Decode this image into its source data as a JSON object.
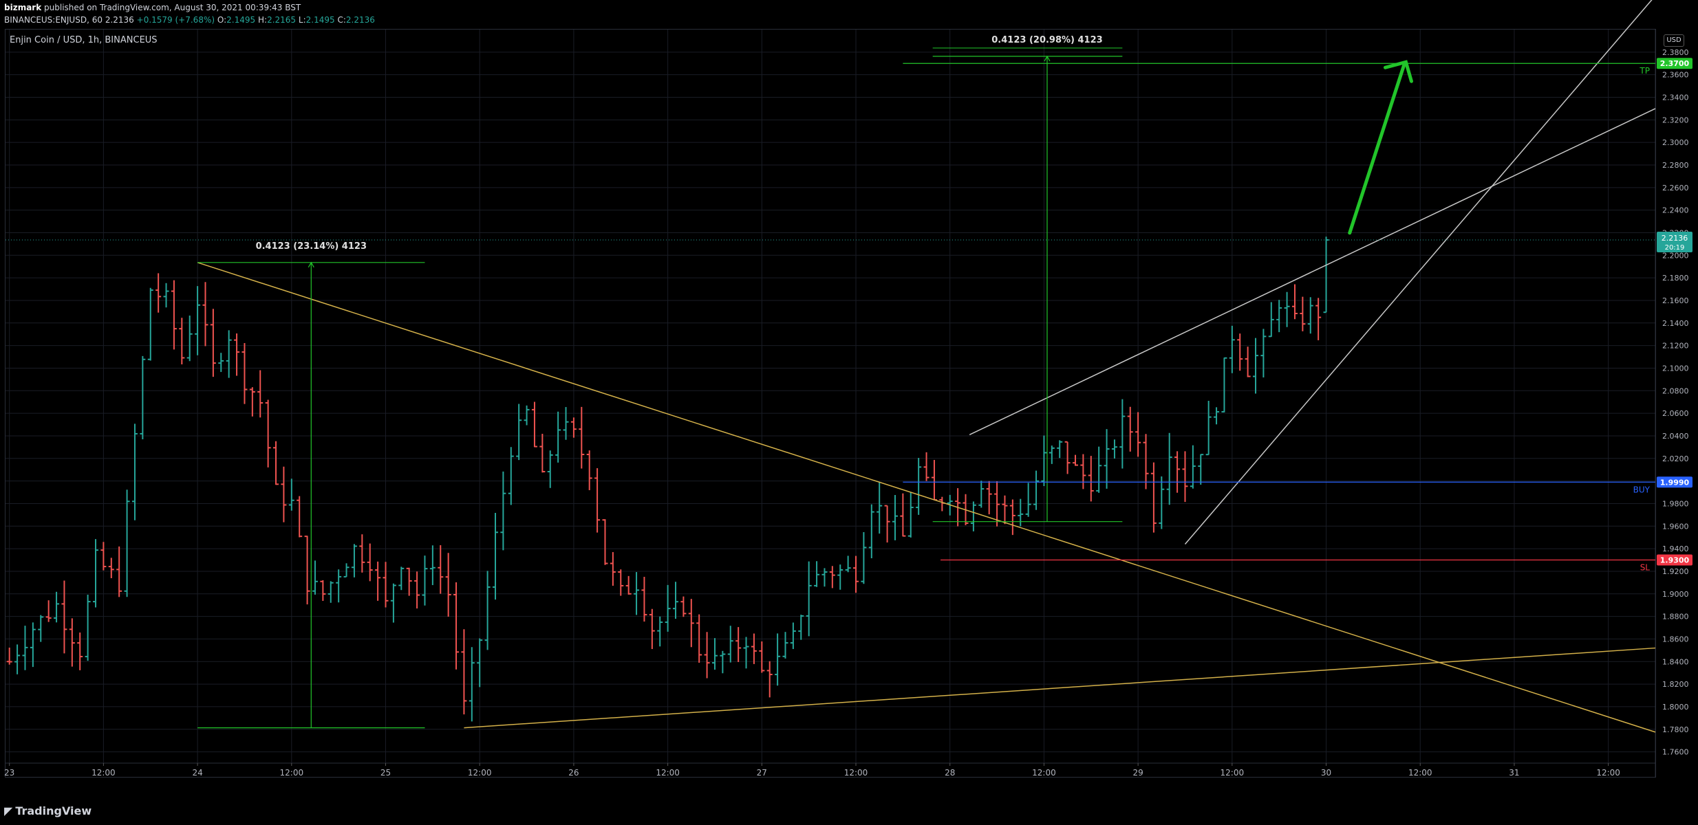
{
  "header": {
    "publisher": "bizmark",
    "published_text": "published on TradingView.com, August 30, 2021 00:39:43 BST",
    "symbol_line": "BINANCEUS:ENJUSD, 60",
    "last": "2.2136",
    "change": "+0.1579 (+7.68%)",
    "o_label": "O:",
    "o_val": "2.1495",
    "h_label": "H:",
    "h_val": "2.2165",
    "l_label": "L:",
    "l_val": "2.1495",
    "c_label": "C:",
    "c_val": "2.2136"
  },
  "chart_title": "Enjin Coin / USD, 1h, BINANCEUS",
  "currency": "USD",
  "footer_brand": "TradingView",
  "colors": {
    "up": "#26a69a",
    "down": "#ef5350",
    "grid": "#1a1d26",
    "trendline": "#d4b14a",
    "channel": "#c8c8c8",
    "green": "#22c52a",
    "buy": "#2962ff",
    "sl": "#f23645"
  },
  "chart_data": {
    "type": "ohlc",
    "ylim": [
      1.75,
      2.4
    ],
    "y_ticks": [
      "1.7600",
      "1.7800",
      "1.8000",
      "1.8200",
      "1.8400",
      "1.8600",
      "1.8800",
      "1.9000",
      "1.9200",
      "1.9400",
      "1.9600",
      "1.9800",
      "2.0000",
      "2.0200",
      "2.0400",
      "2.0600",
      "2.0800",
      "2.1000",
      "2.1200",
      "2.1400",
      "2.1600",
      "2.1800",
      "2.2000",
      "2.2200",
      "2.2400",
      "2.2600",
      "2.2800",
      "2.3000",
      "2.3200",
      "2.3400",
      "2.3600",
      "2.3800"
    ],
    "x_ticks": [
      {
        "h": 0,
        "label": "23"
      },
      {
        "h": 12,
        "label": "12:00"
      },
      {
        "h": 24,
        "label": "24"
      },
      {
        "h": 36,
        "label": "12:00"
      },
      {
        "h": 48,
        "label": "25"
      },
      {
        "h": 60,
        "label": "12:00"
      },
      {
        "h": 72,
        "label": "26"
      },
      {
        "h": 84,
        "label": "12:00"
      },
      {
        "h": 96,
        "label": "27"
      },
      {
        "h": 108,
        "label": "12:00"
      },
      {
        "h": 120,
        "label": "28"
      },
      {
        "h": 132,
        "label": "12:00"
      },
      {
        "h": 144,
        "label": "29"
      },
      {
        "h": 156,
        "label": "12:00"
      },
      {
        "h": 168,
        "label": "30"
      },
      {
        "h": 180,
        "label": "12:00"
      },
      {
        "h": 192,
        "label": "31"
      },
      {
        "h": 204,
        "label": "12:00"
      }
    ],
    "x_range_hours": [
      -0.5,
      210
    ],
    "anchors": [
      [
        0,
        1.84
      ],
      [
        3,
        1.87
      ],
      [
        6,
        1.89
      ],
      [
        9,
        1.85
      ],
      [
        11,
        1.93
      ],
      [
        14,
        1.91
      ],
      [
        16,
        2.04
      ],
      [
        18,
        2.17
      ],
      [
        20,
        2.16
      ],
      [
        22,
        2.11
      ],
      [
        24,
        2.16
      ],
      [
        26,
        2.1
      ],
      [
        28,
        2.13
      ],
      [
        30,
        2.09
      ],
      [
        32,
        2.07
      ],
      [
        34,
        1.99
      ],
      [
        36,
        1.98
      ],
      [
        38,
        1.91
      ],
      [
        40,
        1.9
      ],
      [
        42,
        1.92
      ],
      [
        44,
        1.94
      ],
      [
        46,
        1.93
      ],
      [
        48,
        1.89
      ],
      [
        50,
        1.93
      ],
      [
        52,
        1.9
      ],
      [
        54,
        1.93
      ],
      [
        56,
        1.9
      ],
      [
        58,
        1.8
      ],
      [
        60,
        1.86
      ],
      [
        62,
        1.95
      ],
      [
        64,
        2.03
      ],
      [
        66,
        2.06
      ],
      [
        68,
        2.0
      ],
      [
        70,
        2.05
      ],
      [
        72,
        2.04
      ],
      [
        74,
        2.01
      ],
      [
        76,
        1.93
      ],
      [
        78,
        1.9
      ],
      [
        80,
        1.91
      ],
      [
        82,
        1.87
      ],
      [
        84,
        1.88
      ],
      [
        86,
        1.89
      ],
      [
        88,
        1.85
      ],
      [
        90,
        1.84
      ],
      [
        92,
        1.85
      ],
      [
        94,
        1.86
      ],
      [
        96,
        1.83
      ],
      [
        98,
        1.84
      ],
      [
        100,
        1.86
      ],
      [
        102,
        1.91
      ],
      [
        104,
        1.92
      ],
      [
        106,
        1.92
      ],
      [
        108,
        1.92
      ],
      [
        110,
        1.98
      ],
      [
        112,
        1.97
      ],
      [
        114,
        1.95
      ],
      [
        116,
        2.01
      ],
      [
        118,
        1.98
      ],
      [
        120,
        1.99
      ],
      [
        122,
        1.97
      ],
      [
        124,
        2.0
      ],
      [
        126,
        1.98
      ],
      [
        128,
        1.97
      ],
      [
        130,
        1.98
      ],
      [
        132,
        2.02
      ],
      [
        134,
        2.03
      ],
      [
        136,
        2.01
      ],
      [
        138,
        2.0
      ],
      [
        140,
        2.02
      ],
      [
        142,
        2.05
      ],
      [
        144,
        2.04
      ],
      [
        146,
        1.97
      ],
      [
        148,
        2.03
      ],
      [
        150,
        2.0
      ],
      [
        152,
        2.03
      ],
      [
        154,
        2.07
      ],
      [
        156,
        2.13
      ],
      [
        158,
        2.1
      ],
      [
        160,
        2.12
      ],
      [
        162,
        2.16
      ],
      [
        164,
        2.14
      ],
      [
        166,
        2.15
      ],
      [
        167,
        2.1495
      ],
      [
        168,
        2.2136
      ]
    ],
    "annotations": {
      "fall_measure": {
        "label": "0.4123 (23.14%) 4123",
        "top_price": 2.1936,
        "bottom_price": 1.7813,
        "x_start": 24,
        "x_end": 53,
        "x_mid": 38.5
      },
      "target_measure": {
        "label": "0.4123 (20.98%) 4123",
        "top_price": 2.3763,
        "bottom_price": 1.964,
        "x_start": 117.8,
        "x_end": 142,
        "x_mid": 132.4
      },
      "descending_trendline": {
        "from": [
          24,
          2.1936
        ],
        "to": [
          210,
          1.7775
        ]
      },
      "ascending_trendline": {
        "from": [
          58,
          1.7813
        ],
        "to": [
          210,
          1.852
        ]
      },
      "channel_upper": {
        "from": [
          122.5,
          2.041
        ],
        "to": [
          210,
          2.33
        ]
      },
      "channel_lower": {
        "from": [
          150,
          1.944
        ],
        "to": [
          210,
          2.43
        ]
      },
      "arrow": {
        "from": [
          171,
          2.2198
        ],
        "to": [
          178,
          2.37
        ]
      },
      "tp": {
        "price": 2.37,
        "label": "TP",
        "value": "2.3700",
        "x_start": 114
      },
      "buy": {
        "price": 1.999,
        "label": "BUY",
        "value": "1.9990",
        "x_start": 114
      },
      "sl": {
        "price": 1.93,
        "label": "SL",
        "value": "1.9300",
        "x_start": 118.8
      },
      "last_price": {
        "value": "2.2136",
        "countdown": "20:19"
      }
    }
  }
}
